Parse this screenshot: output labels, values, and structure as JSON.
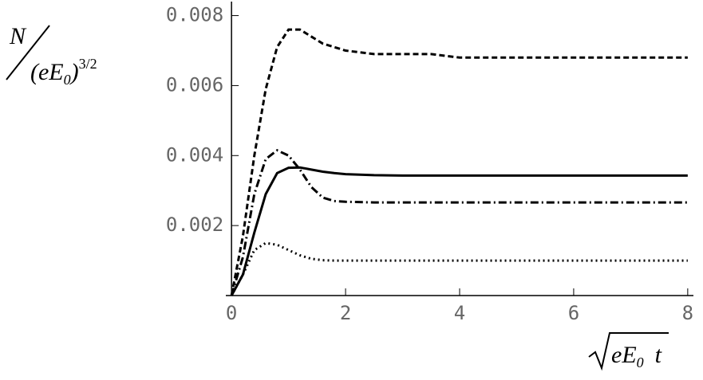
{
  "chart_data": {
    "type": "line",
    "ylabel": {
      "numerator": "N",
      "base": "(eE",
      "sub": "0",
      "close": ")",
      "exponent": "3/2"
    },
    "xlabel": {
      "base": "eE",
      "sub": "0",
      "var": "t"
    },
    "x": [
      0,
      0.2,
      0.4,
      0.6,
      0.8,
      1,
      1.2,
      1.4,
      1.6,
      1.8,
      2,
      2.5,
      3,
      3.5,
      4,
      5,
      6,
      7,
      8
    ],
    "series": [
      {
        "color": "#000000",
        "dash": "7,4",
        "values": [
          0,
          0.0017,
          0.004,
          0.0059,
          0.0071,
          0.0076,
          0.0076,
          0.0074,
          0.0072,
          0.0071,
          0.007,
          0.0069,
          0.0069,
          0.0069,
          0.0068,
          0.0068,
          0.0068,
          0.0068,
          0.0068
        ]
      },
      {
        "color": "#000000",
        "dash": "none",
        "values": [
          0,
          0.0006,
          0.0018,
          0.0029,
          0.0035,
          0.00365,
          0.00366,
          0.0036,
          0.00354,
          0.0035,
          0.00347,
          0.00344,
          0.00343,
          0.00343,
          0.00343,
          0.00343,
          0.00343,
          0.00343,
          0.00343
        ]
      },
      {
        "color": "#000000",
        "dash": "10,4,2,4",
        "values": [
          0,
          0.0011,
          0.0029,
          0.0039,
          0.00415,
          0.004,
          0.0036,
          0.0031,
          0.0028,
          0.0027,
          0.00268,
          0.00266,
          0.00266,
          0.00266,
          0.00266,
          0.00266,
          0.00266,
          0.00266,
          0.00266
        ]
      },
      {
        "color": "#000000",
        "dash": "2,4",
        "values": [
          0,
          0.0006,
          0.0013,
          0.0015,
          0.00145,
          0.0013,
          0.00115,
          0.00105,
          0.00101,
          0.001,
          0.001,
          0.001,
          0.001,
          0.001,
          0.001,
          0.001,
          0.001,
          0.001,
          0.001
        ]
      }
    ],
    "xlim": [
      -0.1,
      8.1
    ],
    "ylim": [
      0,
      0.0084
    ],
    "xticks": [
      0,
      2,
      4,
      6,
      8
    ],
    "yticks": [
      0.002,
      0.004,
      0.006,
      0.008
    ],
    "grid": false
  }
}
